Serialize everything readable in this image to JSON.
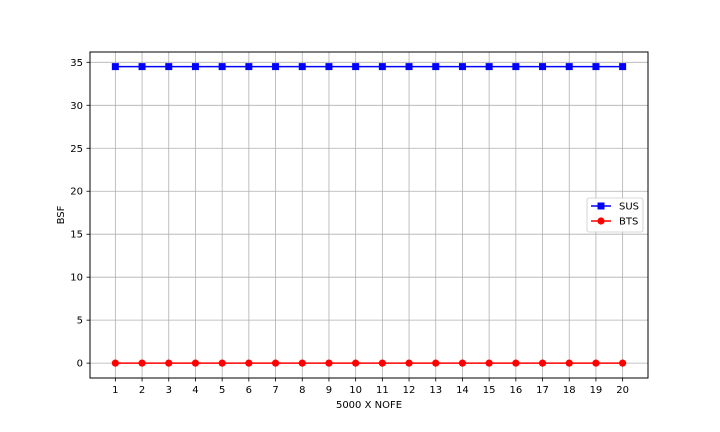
{
  "chart_data": {
    "type": "line",
    "title": "",
    "xlabel": "5000 X NOFE",
    "ylabel": "BSF",
    "x": [
      1,
      2,
      3,
      4,
      5,
      6,
      7,
      8,
      9,
      10,
      11,
      12,
      13,
      14,
      15,
      16,
      17,
      18,
      19,
      20
    ],
    "xticks": [
      "1",
      "2",
      "3",
      "4",
      "5",
      "6",
      "7",
      "8",
      "9",
      "10",
      "11",
      "12",
      "13",
      "14",
      "15",
      "16",
      "17",
      "18",
      "19",
      "20"
    ],
    "yticks": [
      "0",
      "5",
      "10",
      "15",
      "20",
      "25",
      "30",
      "35"
    ],
    "xlim": [
      0.05,
      20.95
    ],
    "ylim": [
      -1.73,
      36.2
    ],
    "grid": true,
    "legend_position": "center-right",
    "series": [
      {
        "name": "SUS",
        "color": "#0000ff",
        "marker": "square",
        "values": [
          34.5,
          34.5,
          34.5,
          34.5,
          34.5,
          34.5,
          34.5,
          34.5,
          34.5,
          34.5,
          34.5,
          34.5,
          34.5,
          34.5,
          34.5,
          34.5,
          34.5,
          34.5,
          34.5,
          34.5
        ]
      },
      {
        "name": "BTS",
        "color": "#ff0000",
        "marker": "circle",
        "values": [
          0,
          0,
          0,
          0,
          0,
          0,
          0,
          0,
          0,
          0,
          0,
          0,
          0,
          0,
          0,
          0,
          0,
          0,
          0,
          0
        ]
      }
    ]
  }
}
